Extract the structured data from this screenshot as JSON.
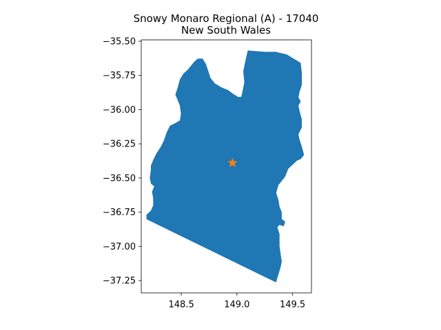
{
  "title": {
    "line1": "Snowy Monaro Regional (A) - 17040",
    "line2": "New South Wales"
  },
  "colors": {
    "region_fill": "#1f77b4",
    "marker": "#ff7f0e",
    "axes": "#000000",
    "background": "#ffffff"
  },
  "chart_data": {
    "type": "map",
    "xlim": [
      148.14,
      149.67
    ],
    "ylim": [
      -37.34,
      -35.49
    ],
    "x_ticks": [
      {
        "value": 148.5,
        "label": "148.5"
      },
      {
        "value": 149.0,
        "label": "149.0"
      },
      {
        "value": 149.5,
        "label": "149.5"
      }
    ],
    "y_ticks": [
      {
        "value": -35.5,
        "label": "−35.50"
      },
      {
        "value": -35.75,
        "label": "−35.75"
      },
      {
        "value": -36.0,
        "label": "−36.00"
      },
      {
        "value": -36.25,
        "label": "−36.25"
      },
      {
        "value": -36.5,
        "label": "−36.50"
      },
      {
        "value": -36.75,
        "label": "−36.75"
      },
      {
        "value": -37.0,
        "label": "−37.00"
      },
      {
        "value": -37.25,
        "label": "−37.25"
      }
    ],
    "region_outline": [
      [
        148.19,
        -36.8
      ],
      [
        149.35,
        -37.26
      ],
      [
        149.39,
        -37.15
      ],
      [
        149.4,
        -37.11
      ],
      [
        149.38,
        -37.0
      ],
      [
        149.38,
        -36.91
      ],
      [
        149.36,
        -36.86
      ],
      [
        149.38,
        -36.84
      ],
      [
        149.42,
        -36.85
      ],
      [
        149.43,
        -36.82
      ],
      [
        149.4,
        -36.8
      ],
      [
        149.4,
        -36.75
      ],
      [
        149.38,
        -36.71
      ],
      [
        149.37,
        -36.66
      ],
      [
        149.35,
        -36.61
      ],
      [
        149.37,
        -36.55
      ],
      [
        149.39,
        -36.53
      ],
      [
        149.43,
        -36.49
      ],
      [
        149.46,
        -36.43
      ],
      [
        149.5,
        -36.4
      ],
      [
        149.54,
        -36.37
      ],
      [
        149.57,
        -36.36
      ],
      [
        149.6,
        -36.33
      ],
      [
        149.58,
        -36.27
      ],
      [
        149.56,
        -36.22
      ],
      [
        149.55,
        -36.18
      ],
      [
        149.58,
        -36.13
      ],
      [
        149.58,
        -36.07
      ],
      [
        149.56,
        -36.01
      ],
      [
        149.55,
        -35.97
      ],
      [
        149.57,
        -35.94
      ],
      [
        149.55,
        -35.91
      ],
      [
        149.56,
        -35.87
      ],
      [
        149.58,
        -35.82
      ],
      [
        149.58,
        -35.73
      ],
      [
        149.57,
        -35.66
      ],
      [
        149.53,
        -35.64
      ],
      [
        149.49,
        -35.62
      ],
      [
        149.45,
        -35.6
      ],
      [
        149.4,
        -35.59
      ],
      [
        149.35,
        -35.58
      ],
      [
        149.25,
        -35.58
      ],
      [
        149.1,
        -35.57
      ],
      [
        149.08,
        -35.64
      ],
      [
        149.06,
        -35.72
      ],
      [
        149.07,
        -35.8
      ],
      [
        149.05,
        -35.88
      ],
      [
        149.04,
        -35.91
      ],
      [
        149.01,
        -35.91
      ],
      [
        148.97,
        -35.89
      ],
      [
        148.92,
        -35.86
      ],
      [
        148.86,
        -35.84
      ],
      [
        148.8,
        -35.81
      ],
      [
        148.76,
        -35.77
      ],
      [
        148.74,
        -35.72
      ],
      [
        148.72,
        -35.67
      ],
      [
        148.69,
        -35.63
      ],
      [
        148.65,
        -35.63
      ],
      [
        148.62,
        -35.65
      ],
      [
        148.59,
        -35.68
      ],
      [
        148.56,
        -35.71
      ],
      [
        148.52,
        -35.74
      ],
      [
        148.49,
        -35.78
      ],
      [
        148.47,
        -35.84
      ],
      [
        148.45,
        -35.89
      ],
      [
        148.47,
        -35.93
      ],
      [
        148.49,
        -35.97
      ],
      [
        148.5,
        -36.03
      ],
      [
        148.49,
        -36.08
      ],
      [
        148.45,
        -36.1
      ],
      [
        148.4,
        -36.12
      ],
      [
        148.37,
        -36.17
      ],
      [
        148.35,
        -36.22
      ],
      [
        148.32,
        -36.27
      ],
      [
        148.28,
        -36.32
      ],
      [
        148.25,
        -36.37
      ],
      [
        148.23,
        -36.41
      ],
      [
        148.23,
        -36.44
      ],
      [
        148.22,
        -36.5
      ],
      [
        148.23,
        -36.54
      ],
      [
        148.26,
        -36.56
      ],
      [
        148.24,
        -36.6
      ],
      [
        148.25,
        -36.65
      ],
      [
        148.25,
        -36.7
      ],
      [
        148.23,
        -36.74
      ],
      [
        148.19,
        -36.77
      ]
    ],
    "marker": {
      "symbol": "star",
      "x": 148.96,
      "y": -36.39
    }
  }
}
